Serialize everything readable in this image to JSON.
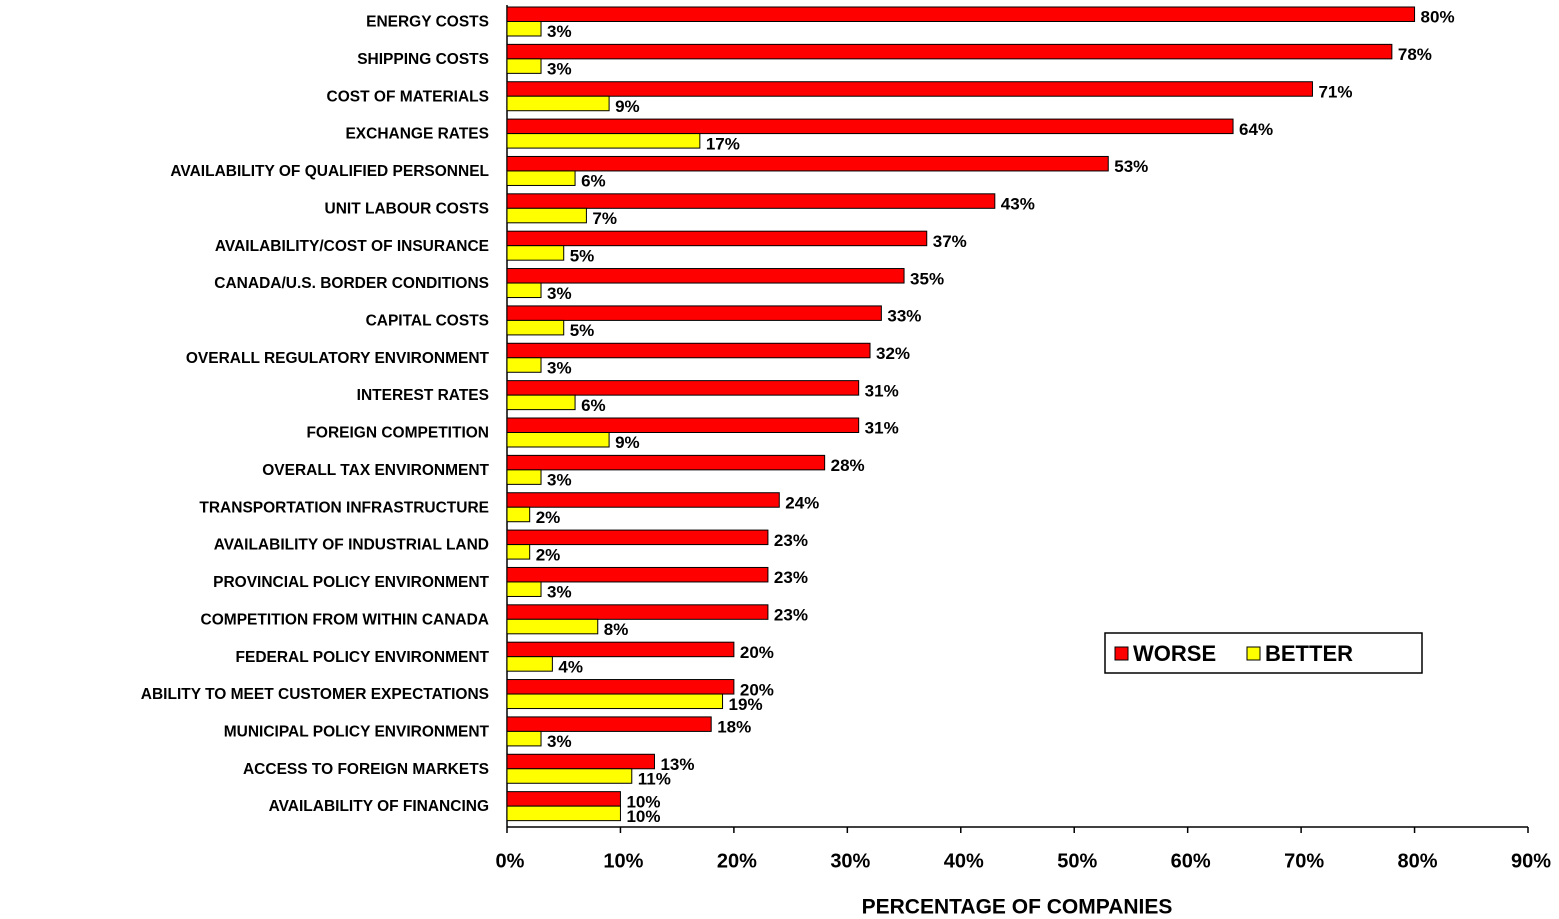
{
  "chart_data": {
    "type": "barh",
    "x_label": "PERCENTAGE OF COMPANIES",
    "categories": [
      "ENERGY COSTS",
      "SHIPPING COSTS",
      "COST OF MATERIALS",
      "EXCHANGE RATES",
      "AVAILABILITY OF QUALIFIED PERSONNEL",
      "UNIT LABOUR COSTS",
      "AVAILABILITY/COST OF INSURANCE",
      "CANADA/U.S. BORDER CONDITIONS",
      "CAPITAL COSTS",
      "OVERALL REGULATORY ENVIRONMENT",
      "INTEREST RATES",
      "FOREIGN COMPETITION",
      "OVERALL TAX ENVIRONMENT",
      "TRANSPORTATION INFRASTRUCTURE",
      "AVAILABILITY OF INDUSTRIAL LAND",
      "PROVINCIAL POLICY ENVIRONMENT",
      "COMPETITION FROM WITHIN CANADA",
      "FEDERAL POLICY ENVIRONMENT",
      "ABILITY TO MEET CUSTOMER EXPECTATIONS",
      "MUNICIPAL POLICY ENVIRONMENT",
      "ACCESS TO FOREIGN MARKETS",
      "AVAILABILITY OF FINANCING"
    ],
    "series": [
      {
        "name": "WORSE",
        "color": "#ff0000",
        "values": [
          80,
          78,
          71,
          64,
          53,
          43,
          37,
          35,
          33,
          32,
          31,
          31,
          28,
          24,
          23,
          23,
          23,
          20,
          20,
          18,
          13,
          10
        ],
        "value_labels": [
          "80%",
          "78%",
          "71%",
          "64%",
          "53%",
          "43%",
          "37%",
          "35%",
          "33%",
          "32%",
          "31%",
          "31%",
          "28%",
          "24%",
          "23%",
          "23%",
          "23%",
          "20%",
          "20%",
          "18%",
          "13%",
          "10%"
        ]
      },
      {
        "name": "BETTER",
        "color": "#ffff00",
        "values": [
          3,
          3,
          9,
          17,
          6,
          7,
          5,
          3,
          5,
          3,
          6,
          9,
          3,
          2,
          2,
          3,
          8,
          4,
          19,
          3,
          11,
          10
        ],
        "value_labels": [
          "3%",
          "3%",
          "9%",
          "17%",
          "6%",
          "7%",
          "5%",
          "3%",
          "5%",
          "3%",
          "6%",
          "9%",
          "3%",
          "2%",
          "2%",
          "3%",
          "8%",
          "4%",
          "19%",
          "3%",
          "11%",
          "10%"
        ]
      }
    ],
    "xlim": [
      0,
      90
    ],
    "xticks": [
      {
        "value": 0,
        "label": "0%"
      },
      {
        "value": 10,
        "label": "10%"
      },
      {
        "value": 20,
        "label": "20%"
      },
      {
        "value": 30,
        "label": "30%"
      },
      {
        "value": 40,
        "label": "40%"
      },
      {
        "value": 50,
        "label": "50%"
      },
      {
        "value": 60,
        "label": "60%"
      },
      {
        "value": 70,
        "label": "70%"
      },
      {
        "value": 80,
        "label": "80%"
      },
      {
        "value": 90,
        "label": "90%"
      }
    ],
    "legend": "right"
  }
}
